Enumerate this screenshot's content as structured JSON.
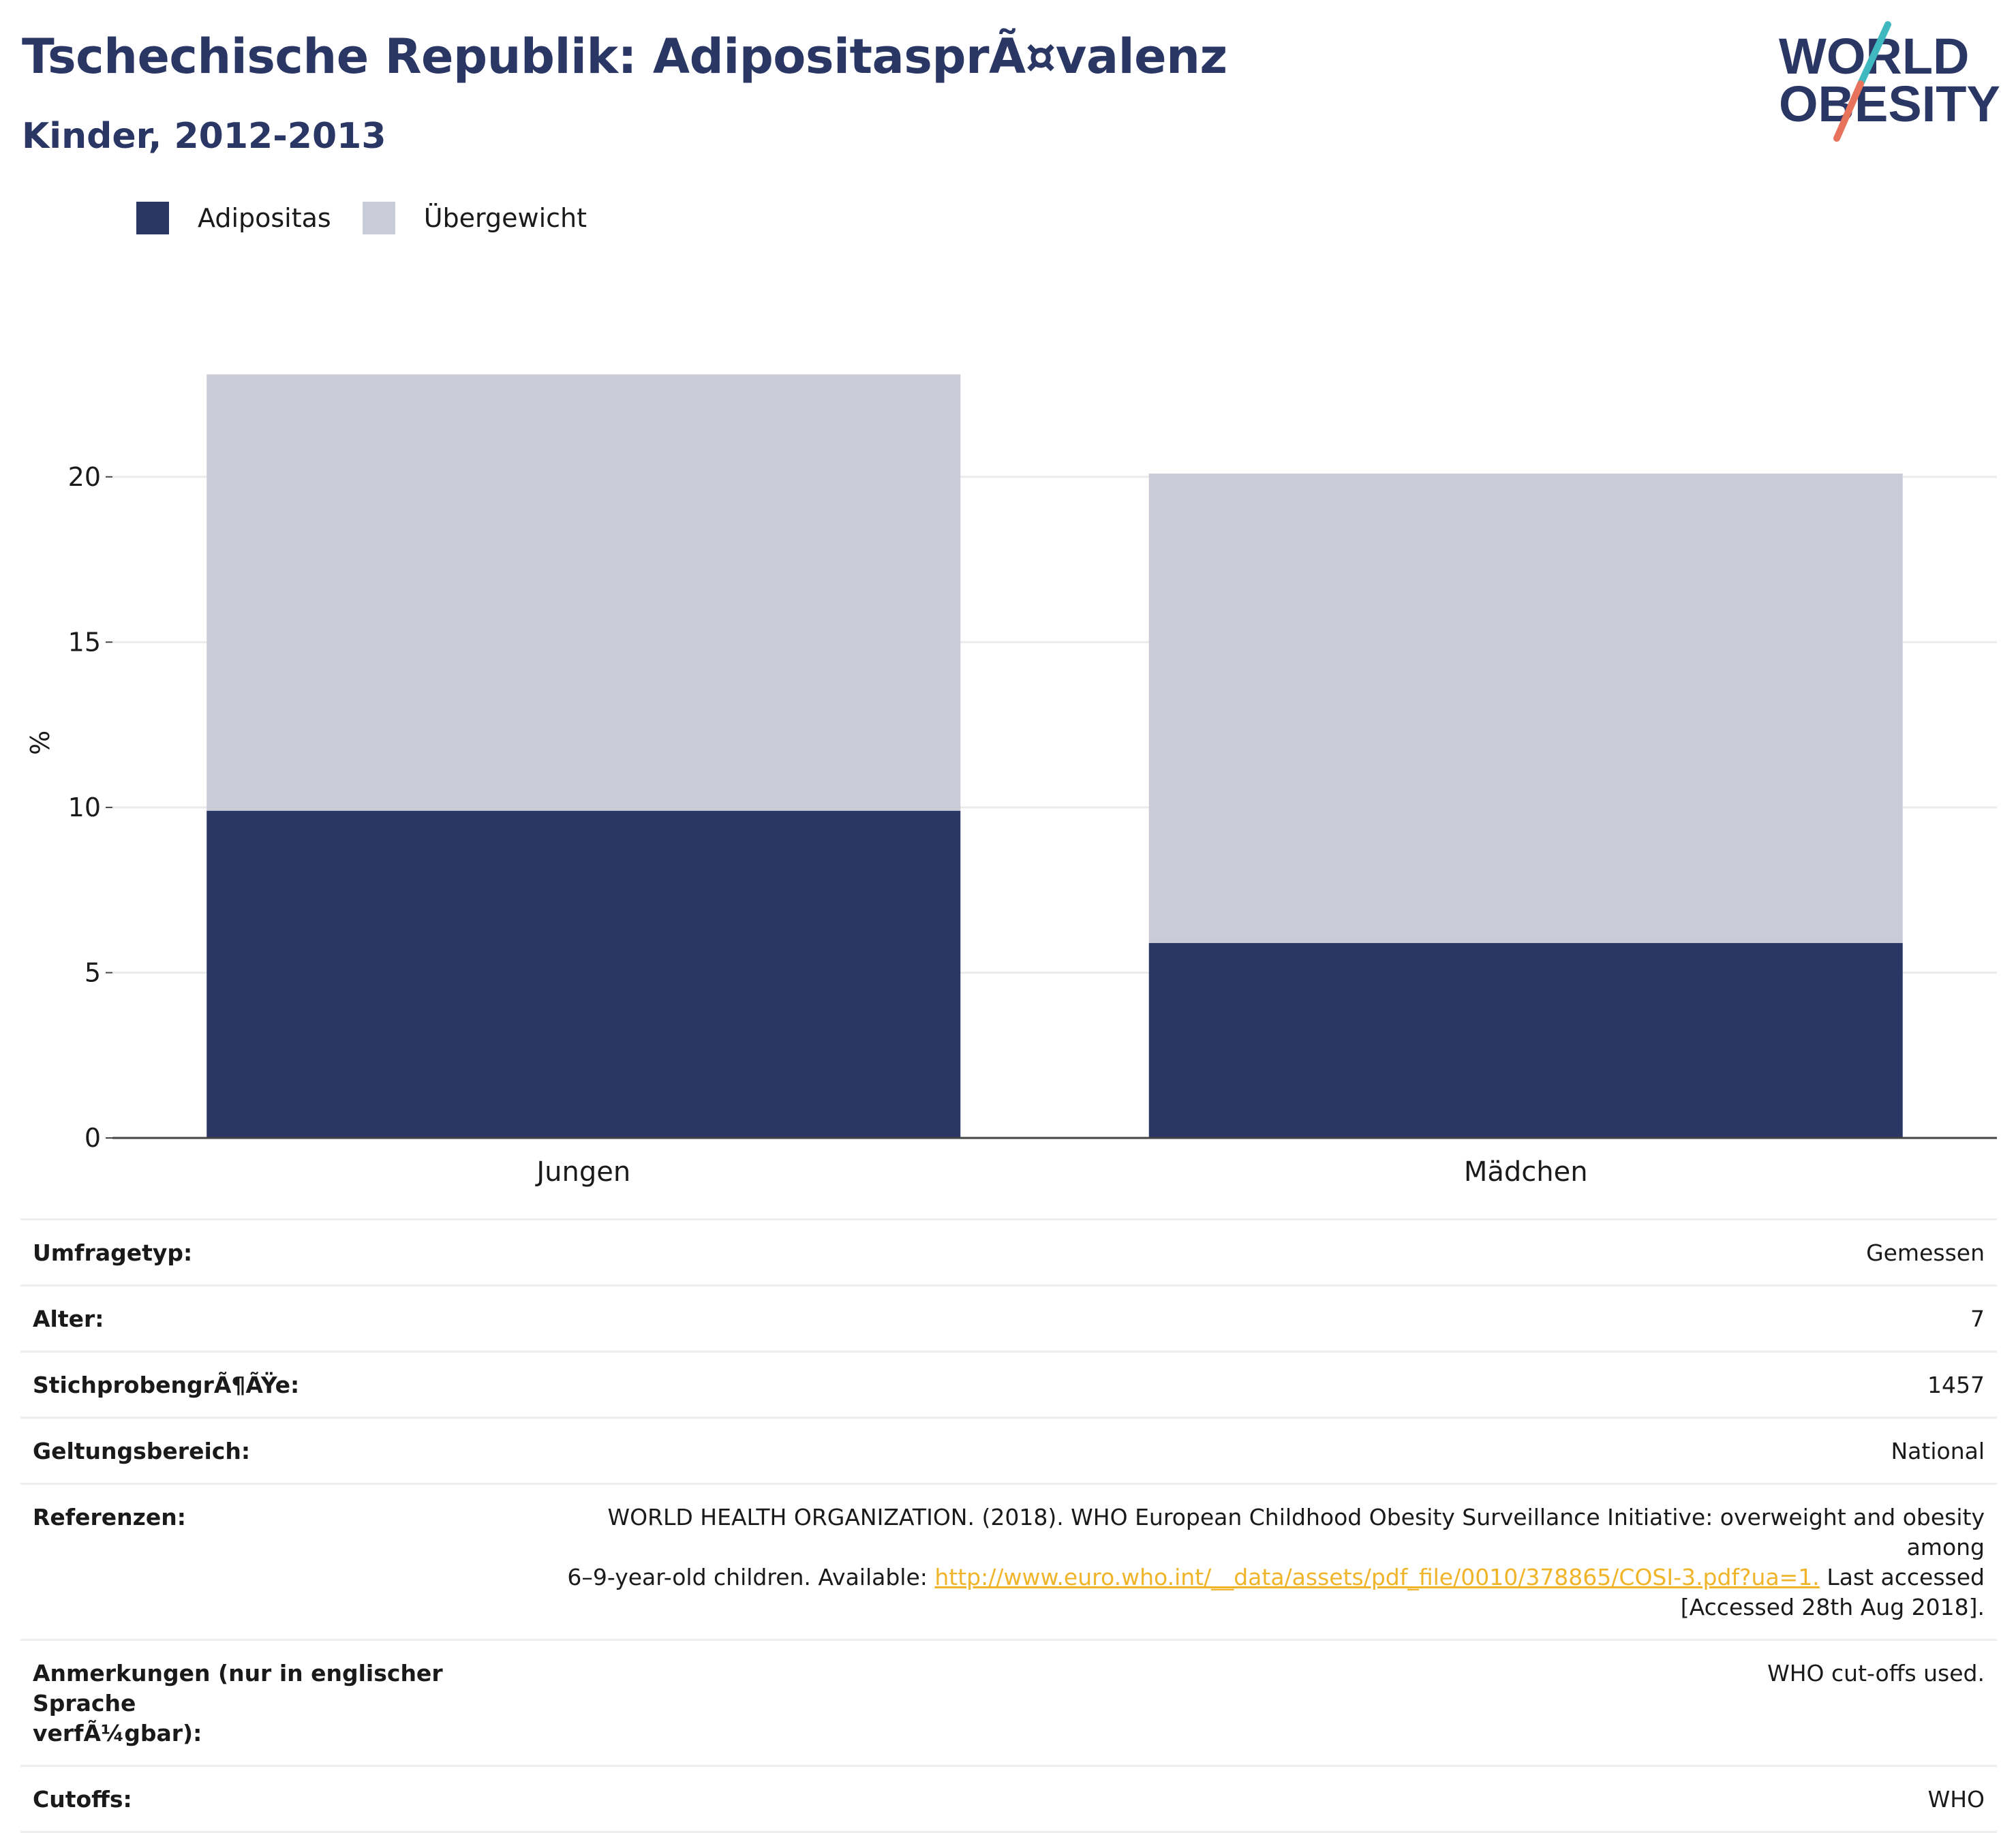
{
  "header": {
    "title": "Tschechische Republik: AdipositasprÃ¤valenz",
    "subtitle": "Kinder, 2012-2013"
  },
  "logo": {
    "line1": "WORLD",
    "line2": "OBESITY",
    "colors": {
      "text": "#2a3663",
      "slash_top": "#3fb8c0",
      "slash_bottom": "#e8735d"
    }
  },
  "legend": [
    {
      "label": "Adipositas",
      "color": "#2a3663"
    },
    {
      "label": "Übergewicht",
      "color": "#c9cbd7"
    }
  ],
  "chart_data": {
    "type": "bar",
    "stacked": true,
    "categories": [
      "Jungen",
      "Mädchen"
    ],
    "series": [
      {
        "name": "Adipositas",
        "values": [
          9.9,
          5.9
        ],
        "color": "#2a3663"
      },
      {
        "name": "Übergewicht",
        "values": [
          13.2,
          14.2
        ],
        "color": "#c9cbd7"
      }
    ],
    "ylabel": "%",
    "ylim": [
      0,
      23.5
    ],
    "yticks": [
      0,
      5,
      10,
      15,
      20
    ],
    "grid": true,
    "legend_position": "top-left"
  },
  "info": {
    "rows": [
      {
        "label": "Umfragetyp:",
        "value": "Gemessen"
      },
      {
        "label": "Alter:",
        "value": "7"
      },
      {
        "label": "StichprobengrÃ¶ÃŸe:",
        "value": "1457"
      },
      {
        "label": "Geltungsbereich:",
        "value": "National"
      }
    ],
    "references": {
      "label": "Referenzen:",
      "line1": "WORLD HEALTH ORGANIZATION. (2018). WHO European Childhood Obesity Surveillance Initiative: overweight and obesity among",
      "line2_prefix": "6–9-year-old children. Available:",
      "link": "http://www.euro.who.int/__data/assets/pdf_file/0010/378865/COSI-3.pdf?ua=1.",
      "line2_suffix": "Last accessed",
      "line3": "[Accessed 28th Aug 2018]."
    },
    "notes": {
      "label_line1": "Anmerkungen (nur in englischer Sprache",
      "label_line2": "verfÃ¼gbar):",
      "value": "WHO cut-offs used."
    },
    "cutoffs": {
      "label": "Cutoffs:",
      "value": "WHO"
    }
  }
}
